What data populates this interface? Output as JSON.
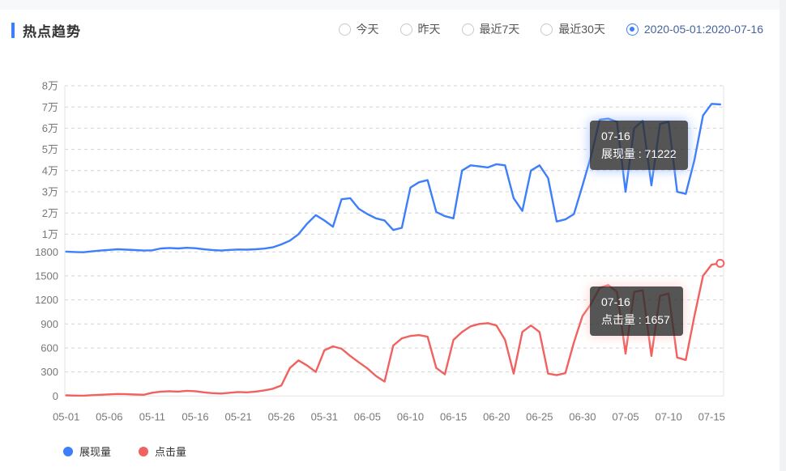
{
  "header": {
    "title": "热点趋势",
    "filters": [
      {
        "label": "今天",
        "selected": false
      },
      {
        "label": "昨天",
        "selected": false
      },
      {
        "label": "最近7天",
        "selected": false
      },
      {
        "label": "最近30天",
        "selected": false
      },
      {
        "label": "2020-05-01:2020-07-16",
        "selected": true
      }
    ]
  },
  "tooltips": [
    {
      "date": "07-16",
      "series": "展现量",
      "value": "71222",
      "text": "展现量 : 71222"
    },
    {
      "date": "07-16",
      "series": "点击量",
      "value": "1657",
      "text": "点击量 : 1657"
    }
  ],
  "legend": [
    {
      "label": "展现量",
      "color": "#3d7efb"
    },
    {
      "label": "点击量",
      "color": "#f0615f"
    }
  ],
  "colors": {
    "impressions_line": "#3d7efb",
    "clicks_line": "#f0615f",
    "accent": "#3d7efb",
    "grid": "#d4d4d4",
    "axis_text": "#777"
  },
  "chart_data": {
    "type": "line",
    "title": "热点趋势",
    "grid": "dashed, two stacked grids sharing x axis",
    "legend_position": "bottom-left",
    "x": [
      "05-01",
      "05-02",
      "05-03",
      "05-04",
      "05-05",
      "05-06",
      "05-07",
      "05-08",
      "05-09",
      "05-10",
      "05-11",
      "05-12",
      "05-13",
      "05-14",
      "05-15",
      "05-16",
      "05-17",
      "05-18",
      "05-19",
      "05-20",
      "05-21",
      "05-22",
      "05-23",
      "05-24",
      "05-25",
      "05-26",
      "05-27",
      "05-28",
      "05-29",
      "05-30",
      "05-31",
      "06-01",
      "06-02",
      "06-03",
      "06-04",
      "06-05",
      "06-06",
      "06-07",
      "06-08",
      "06-09",
      "06-10",
      "06-11",
      "06-12",
      "06-13",
      "06-14",
      "06-15",
      "06-16",
      "06-17",
      "06-18",
      "06-19",
      "06-20",
      "06-21",
      "06-22",
      "06-23",
      "06-24",
      "06-25",
      "06-26",
      "06-27",
      "06-28",
      "06-29",
      "06-30",
      "07-01",
      "07-02",
      "07-03",
      "07-04",
      "07-05",
      "07-06",
      "07-07",
      "07-08",
      "07-09",
      "07-10",
      "07-11",
      "07-12",
      "07-13",
      "07-14",
      "07-15",
      "07-16"
    ],
    "x_tick_labels": [
      "05-01",
      "05-06",
      "05-11",
      "05-16",
      "05-21",
      "05-26",
      "05-31",
      "06-05",
      "06-10",
      "06-15",
      "06-20",
      "06-25",
      "06-30",
      "07-05",
      "07-10",
      "07-15"
    ],
    "x_tick_step": 5,
    "top_axis": {
      "series": "展现量",
      "min": 0,
      "max": 80000,
      "tick_values": [
        10000,
        20000,
        30000,
        40000,
        50000,
        60000,
        70000,
        80000
      ],
      "tick_labels": [
        "1万",
        "2万",
        "3万",
        "4万",
        "5万",
        "6万",
        "7万",
        "8万"
      ]
    },
    "bottom_axis": {
      "series": "点击量",
      "min": 0,
      "max": 1800,
      "tick_values": [
        0,
        300,
        600,
        900,
        1200,
        1500,
        1800
      ],
      "tick_labels": [
        "0",
        "300",
        "600",
        "900",
        "1200",
        "1500",
        "1800"
      ]
    },
    "series": [
      {
        "name": "展现量",
        "axis": "top",
        "color": "#3d7efb",
        "end_value_label": "71222",
        "values": [
          1800,
          1600,
          1500,
          1900,
          2300,
          2600,
          2900,
          2700,
          2500,
          2300,
          2400,
          3300,
          3500,
          3300,
          3600,
          3400,
          2900,
          2500,
          2300,
          2600,
          2800,
          2700,
          2900,
          3200,
          3800,
          5200,
          7000,
          10000,
          15000,
          19000,
          16500,
          13500,
          26500,
          27000,
          22000,
          19500,
          17500,
          16500,
          12000,
          13000,
          32000,
          34500,
          35500,
          20500,
          18500,
          17500,
          40000,
          42500,
          42000,
          41500,
          43000,
          42500,
          27000,
          21000,
          40000,
          42500,
          36500,
          16000,
          17000,
          19500,
          33000,
          47000,
          64000,
          64500,
          63000,
          30000,
          60000,
          63500,
          33000,
          62000,
          63000,
          30000,
          29000,
          45000,
          66000,
          71500,
          71222
        ]
      },
      {
        "name": "点击量",
        "axis": "bottom",
        "color": "#f0615f",
        "end_value_label": "1657",
        "values": [
          8,
          5,
          4,
          10,
          15,
          20,
          25,
          22,
          18,
          15,
          40,
          55,
          60,
          55,
          65,
          60,
          45,
          35,
          30,
          40,
          50,
          45,
          55,
          70,
          90,
          130,
          350,
          445,
          380,
          300,
          570,
          620,
          590,
          500,
          420,
          345,
          250,
          180,
          630,
          720,
          750,
          760,
          740,
          350,
          270,
          700,
          800,
          870,
          900,
          910,
          880,
          700,
          280,
          800,
          880,
          800,
          280,
          260,
          285,
          670,
          1000,
          1150,
          1350,
          1385,
          1300,
          530,
          1300,
          1320,
          500,
          1250,
          1280,
          480,
          450,
          1000,
          1500,
          1640,
          1657
        ]
      }
    ]
  }
}
